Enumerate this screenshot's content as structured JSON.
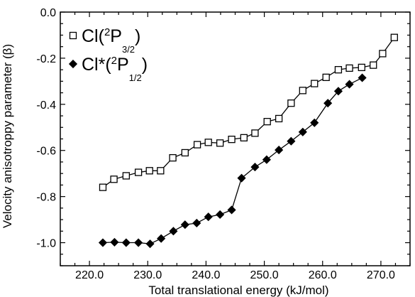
{
  "chart_data": {
    "type": "line",
    "xlabel": "Total translational energy (kJ/mol)",
    "ylabel": "Velocity anisotroppy parameter (β)",
    "xlim": [
      215,
      275
    ],
    "ylim": [
      -1.1,
      0.0
    ],
    "xticks": [
      220.0,
      230.0,
      240.0,
      250.0,
      260.0,
      270.0
    ],
    "yticks": [
      0.0,
      -0.2,
      -0.4,
      -0.6,
      -0.8,
      -1.0
    ],
    "xtick_labels": [
      "220.0",
      "230.0",
      "240.0",
      "250.0",
      "260.0",
      "270.0"
    ],
    "ytick_labels": [
      "0.0",
      "-0.2",
      "-0.4",
      "-0.6",
      "-0.8",
      "-1.0"
    ],
    "grid": false,
    "legend_position": "top-left",
    "series": [
      {
        "legend": {
          "base": "Cl(",
          "sup": "2",
          "mid": "P",
          "sub": "3/2",
          "close": ")"
        },
        "marker": "open-square",
        "color": "#000000",
        "points": [
          [
            222.3,
            -0.76
          ],
          [
            224.2,
            -0.725
          ],
          [
            226.3,
            -0.71
          ],
          [
            228.4,
            -0.695
          ],
          [
            230.3,
            -0.688
          ],
          [
            232.2,
            -0.688
          ],
          [
            234.3,
            -0.632
          ],
          [
            236.4,
            -0.61
          ],
          [
            238.5,
            -0.575
          ],
          [
            240.4,
            -0.565
          ],
          [
            242.4,
            -0.568
          ],
          [
            244.4,
            -0.552
          ],
          [
            246.5,
            -0.545
          ],
          [
            248.4,
            -0.525
          ],
          [
            250.5,
            -0.475
          ],
          [
            252.5,
            -0.462
          ],
          [
            254.6,
            -0.395
          ],
          [
            256.6,
            -0.34
          ],
          [
            258.6,
            -0.31
          ],
          [
            260.6,
            -0.283
          ],
          [
            262.7,
            -0.25
          ],
          [
            264.6,
            -0.243
          ],
          [
            266.7,
            -0.24
          ],
          [
            268.7,
            -0.23
          ],
          [
            270.3,
            -0.18
          ],
          [
            272.3,
            -0.11
          ]
        ]
      },
      {
        "legend": {
          "base": "Cl*(",
          "sup": "2",
          "mid": "P",
          "sub": "1/2",
          "close": ")"
        },
        "marker": "filled-diamond",
        "color": "#000000",
        "points": [
          [
            222.3,
            -1.0
          ],
          [
            224.3,
            -0.998
          ],
          [
            226.3,
            -1.0
          ],
          [
            228.4,
            -1.0
          ],
          [
            230.4,
            -1.005
          ],
          [
            232.3,
            -0.982
          ],
          [
            234.4,
            -0.95
          ],
          [
            236.4,
            -0.922
          ],
          [
            238.4,
            -0.915
          ],
          [
            240.4,
            -0.888
          ],
          [
            242.4,
            -0.878
          ],
          [
            244.4,
            -0.858
          ],
          [
            246.1,
            -0.72
          ],
          [
            248.4,
            -0.672
          ],
          [
            250.4,
            -0.64
          ],
          [
            252.5,
            -0.598
          ],
          [
            254.6,
            -0.56
          ],
          [
            256.6,
            -0.52
          ],
          [
            258.6,
            -0.48
          ],
          [
            260.9,
            -0.395
          ],
          [
            262.7,
            -0.343
          ],
          [
            264.6,
            -0.313
          ],
          [
            266.8,
            -0.285
          ]
        ]
      }
    ]
  }
}
